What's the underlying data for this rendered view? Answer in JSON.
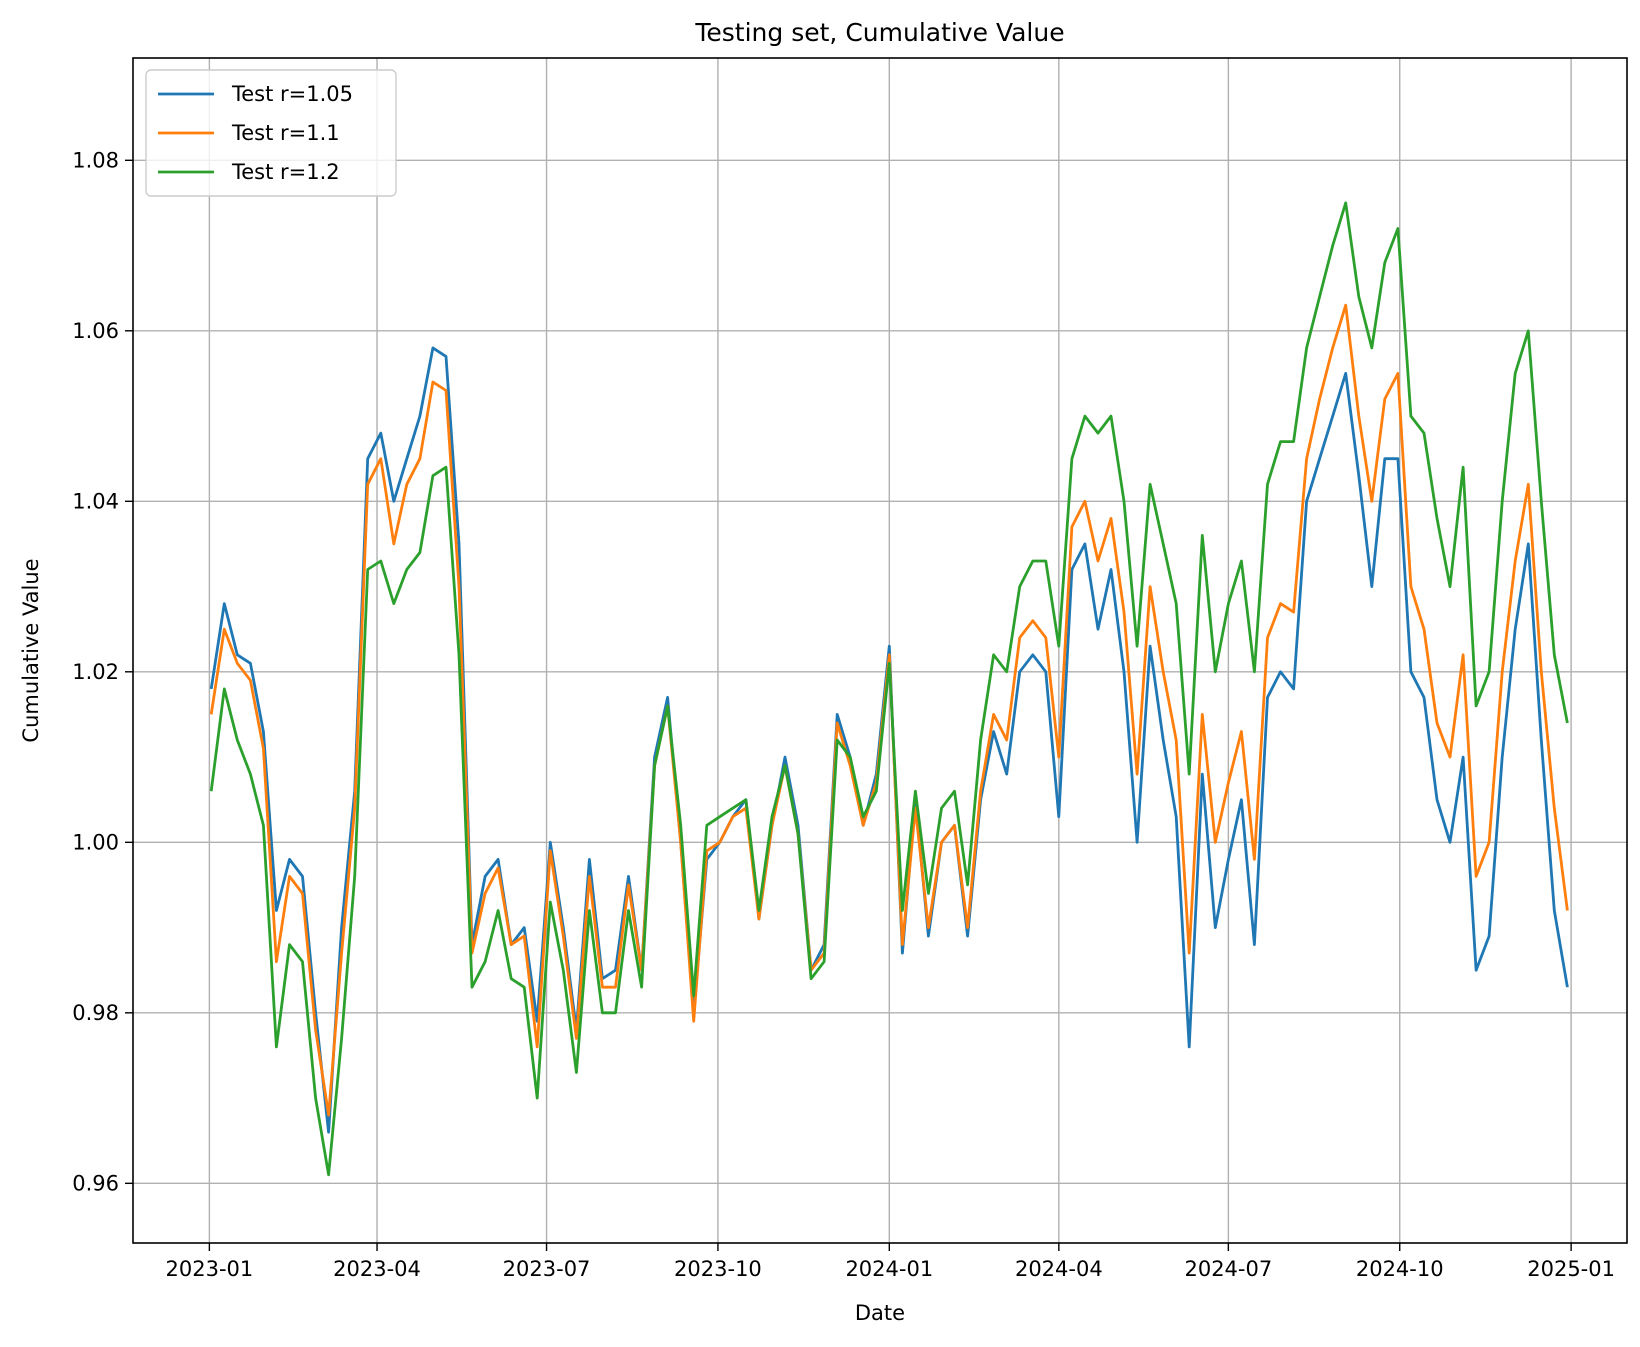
{
  "chart_data": {
    "type": "line",
    "title": "Testing set, Cumulative Value",
    "xlabel": "Date",
    "ylabel": "Cumulative Value",
    "x_axis_type": "date",
    "xlim": [
      "2022-11-21",
      "2025-01-31"
    ],
    "ylim": [
      0.953,
      1.092
    ],
    "x_ticks": [
      "2023-01",
      "2023-04",
      "2023-07",
      "2023-10",
      "2024-01",
      "2024-04",
      "2024-07",
      "2024-10",
      "2025-01"
    ],
    "y_ticks": [
      0.96,
      0.98,
      1.0,
      1.02,
      1.04,
      1.06,
      1.08
    ],
    "y_tick_labels": [
      "0.96",
      "0.98",
      "1.00",
      "1.02",
      "1.04",
      "1.06",
      "1.08"
    ],
    "grid": true,
    "legend_position": "top-left",
    "x": [
      "2023-01-02",
      "2023-01-09",
      "2023-01-16",
      "2023-01-23",
      "2023-01-30",
      "2023-02-06",
      "2023-02-13",
      "2023-02-20",
      "2023-02-27",
      "2023-03-06",
      "2023-03-13",
      "2023-03-20",
      "2023-03-27",
      "2023-04-03",
      "2023-04-10",
      "2023-04-17",
      "2023-04-24",
      "2023-05-01",
      "2023-05-08",
      "2023-05-15",
      "2023-05-22",
      "2023-05-29",
      "2023-06-05",
      "2023-06-12",
      "2023-06-19",
      "2023-06-26",
      "2023-07-03",
      "2023-07-10",
      "2023-07-17",
      "2023-07-24",
      "2023-07-31",
      "2023-08-07",
      "2023-08-14",
      "2023-08-21",
      "2023-08-28",
      "2023-09-04",
      "2023-09-11",
      "2023-09-18",
      "2023-09-25",
      "2023-10-02",
      "2023-10-09",
      "2023-10-16",
      "2023-10-23",
      "2023-10-30",
      "2023-11-06",
      "2023-11-13",
      "2023-11-20",
      "2023-11-27",
      "2023-12-04",
      "2023-12-11",
      "2023-12-18",
      "2023-12-25",
      "2024-01-01",
      "2024-01-08",
      "2024-01-15",
      "2024-01-22",
      "2024-01-29",
      "2024-02-05",
      "2024-02-12",
      "2024-02-19",
      "2024-02-26",
      "2024-03-04",
      "2024-03-11",
      "2024-03-18",
      "2024-03-25",
      "2024-04-01",
      "2024-04-08",
      "2024-04-15",
      "2024-04-22",
      "2024-04-29",
      "2024-05-06",
      "2024-05-13",
      "2024-05-20",
      "2024-05-27",
      "2024-06-03",
      "2024-06-10",
      "2024-06-17",
      "2024-06-24",
      "2024-07-01",
      "2024-07-08",
      "2024-07-15",
      "2024-07-22",
      "2024-07-29",
      "2024-08-05",
      "2024-08-12",
      "2024-08-19",
      "2024-08-26",
      "2024-09-02",
      "2024-09-09",
      "2024-09-16",
      "2024-09-23",
      "2024-09-30",
      "2024-10-07",
      "2024-10-14",
      "2024-10-21",
      "2024-10-28",
      "2024-11-04",
      "2024-11-11",
      "2024-11-18",
      "2024-11-25",
      "2024-12-02",
      "2024-12-09",
      "2024-12-16",
      "2024-12-23",
      "2024-12-30"
    ],
    "series": [
      {
        "name": "Test r=1.05",
        "color": "#1f77b4",
        "values": [
          1.018,
          1.028,
          1.022,
          1.021,
          1.013,
          0.992,
          0.998,
          0.996,
          0.98,
          0.966,
          0.99,
          1.006,
          1.045,
          1.048,
          1.04,
          1.045,
          1.05,
          1.058,
          1.057,
          1.035,
          0.988,
          0.996,
          0.998,
          0.988,
          0.99,
          0.979,
          1.0,
          0.99,
          0.978,
          0.998,
          0.984,
          0.985,
          0.996,
          0.985,
          1.01,
          1.017,
          1.0,
          0.98,
          0.998,
          1.0,
          1.003,
          1.005,
          0.991,
          1.002,
          1.01,
          1.002,
          0.985,
          0.988,
          1.015,
          1.01,
          1.002,
          1.008,
          1.023,
          0.987,
          1.005,
          0.989,
          1.0,
          1.002,
          0.989,
          1.005,
          1.013,
          1.008,
          1.02,
          1.022,
          1.02,
          1.003,
          1.032,
          1.035,
          1.025,
          1.032,
          1.02,
          1.0,
          1.023,
          1.012,
          1.003,
          0.976,
          1.008,
          0.99,
          0.998,
          1.005,
          0.988,
          1.017,
          1.02,
          1.018,
          1.04,
          1.045,
          1.05,
          1.055,
          1.043,
          1.03,
          1.045,
          1.045,
          1.02,
          1.017,
          1.005,
          1.0,
          1.01,
          0.985,
          0.989,
          1.01,
          1.025,
          1.035,
          1.012,
          0.992,
          0.983
        ]
      },
      {
        "name": "Test r=1.1",
        "color": "#ff7f0e",
        "values": [
          1.015,
          1.025,
          1.021,
          1.019,
          1.011,
          0.986,
          0.996,
          0.994,
          0.978,
          0.968,
          0.987,
          1.004,
          1.042,
          1.045,
          1.035,
          1.042,
          1.045,
          1.054,
          1.053,
          1.03,
          0.987,
          0.994,
          0.997,
          0.988,
          0.989,
          0.976,
          0.999,
          0.989,
          0.977,
          0.996,
          0.983,
          0.983,
          0.995,
          0.985,
          1.009,
          1.016,
          1.0,
          0.979,
          0.999,
          1.0,
          1.003,
          1.004,
          0.991,
          1.002,
          1.009,
          1.001,
          0.985,
          0.987,
          1.014,
          1.009,
          1.002,
          1.007,
          1.022,
          0.988,
          1.004,
          0.99,
          1.0,
          1.002,
          0.99,
          1.006,
          1.015,
          1.012,
          1.024,
          1.026,
          1.024,
          1.01,
          1.037,
          1.04,
          1.033,
          1.038,
          1.027,
          1.008,
          1.03,
          1.02,
          1.012,
          0.987,
          1.015,
          1.0,
          1.007,
          1.013,
          0.998,
          1.024,
          1.028,
          1.027,
          1.045,
          1.052,
          1.058,
          1.063,
          1.05,
          1.04,
          1.052,
          1.055,
          1.03,
          1.025,
          1.014,
          1.01,
          1.022,
          0.996,
          1.0,
          1.02,
          1.033,
          1.042,
          1.02,
          1.004,
          0.992
        ]
      },
      {
        "name": "Test r=1.2",
        "color": "#2ca02c",
        "values": [
          1.006,
          1.018,
          1.012,
          1.008,
          1.002,
          0.976,
          0.988,
          0.986,
          0.97,
          0.961,
          0.977,
          0.996,
          1.032,
          1.033,
          1.028,
          1.032,
          1.034,
          1.043,
          1.044,
          1.022,
          0.983,
          0.986,
          0.992,
          0.984,
          0.983,
          0.97,
          0.993,
          0.985,
          0.973,
          0.992,
          0.98,
          0.98,
          0.992,
          0.983,
          1.009,
          1.016,
          1.002,
          0.982,
          1.002,
          1.003,
          1.004,
          1.005,
          0.992,
          1.003,
          1.009,
          1.001,
          0.984,
          0.986,
          1.012,
          1.01,
          1.003,
          1.006,
          1.021,
          0.992,
          1.006,
          0.994,
          1.004,
          1.006,
          0.995,
          1.012,
          1.022,
          1.02,
          1.03,
          1.033,
          1.033,
          1.023,
          1.045,
          1.05,
          1.048,
          1.05,
          1.04,
          1.023,
          1.042,
          1.035,
          1.028,
          1.008,
          1.036,
          1.02,
          1.028,
          1.033,
          1.02,
          1.042,
          1.047,
          1.047,
          1.058,
          1.064,
          1.07,
          1.075,
          1.064,
          1.058,
          1.068,
          1.072,
          1.05,
          1.048,
          1.038,
          1.03,
          1.044,
          1.016,
          1.02,
          1.04,
          1.055,
          1.06,
          1.04,
          1.022,
          1.014
        ]
      }
    ]
  }
}
